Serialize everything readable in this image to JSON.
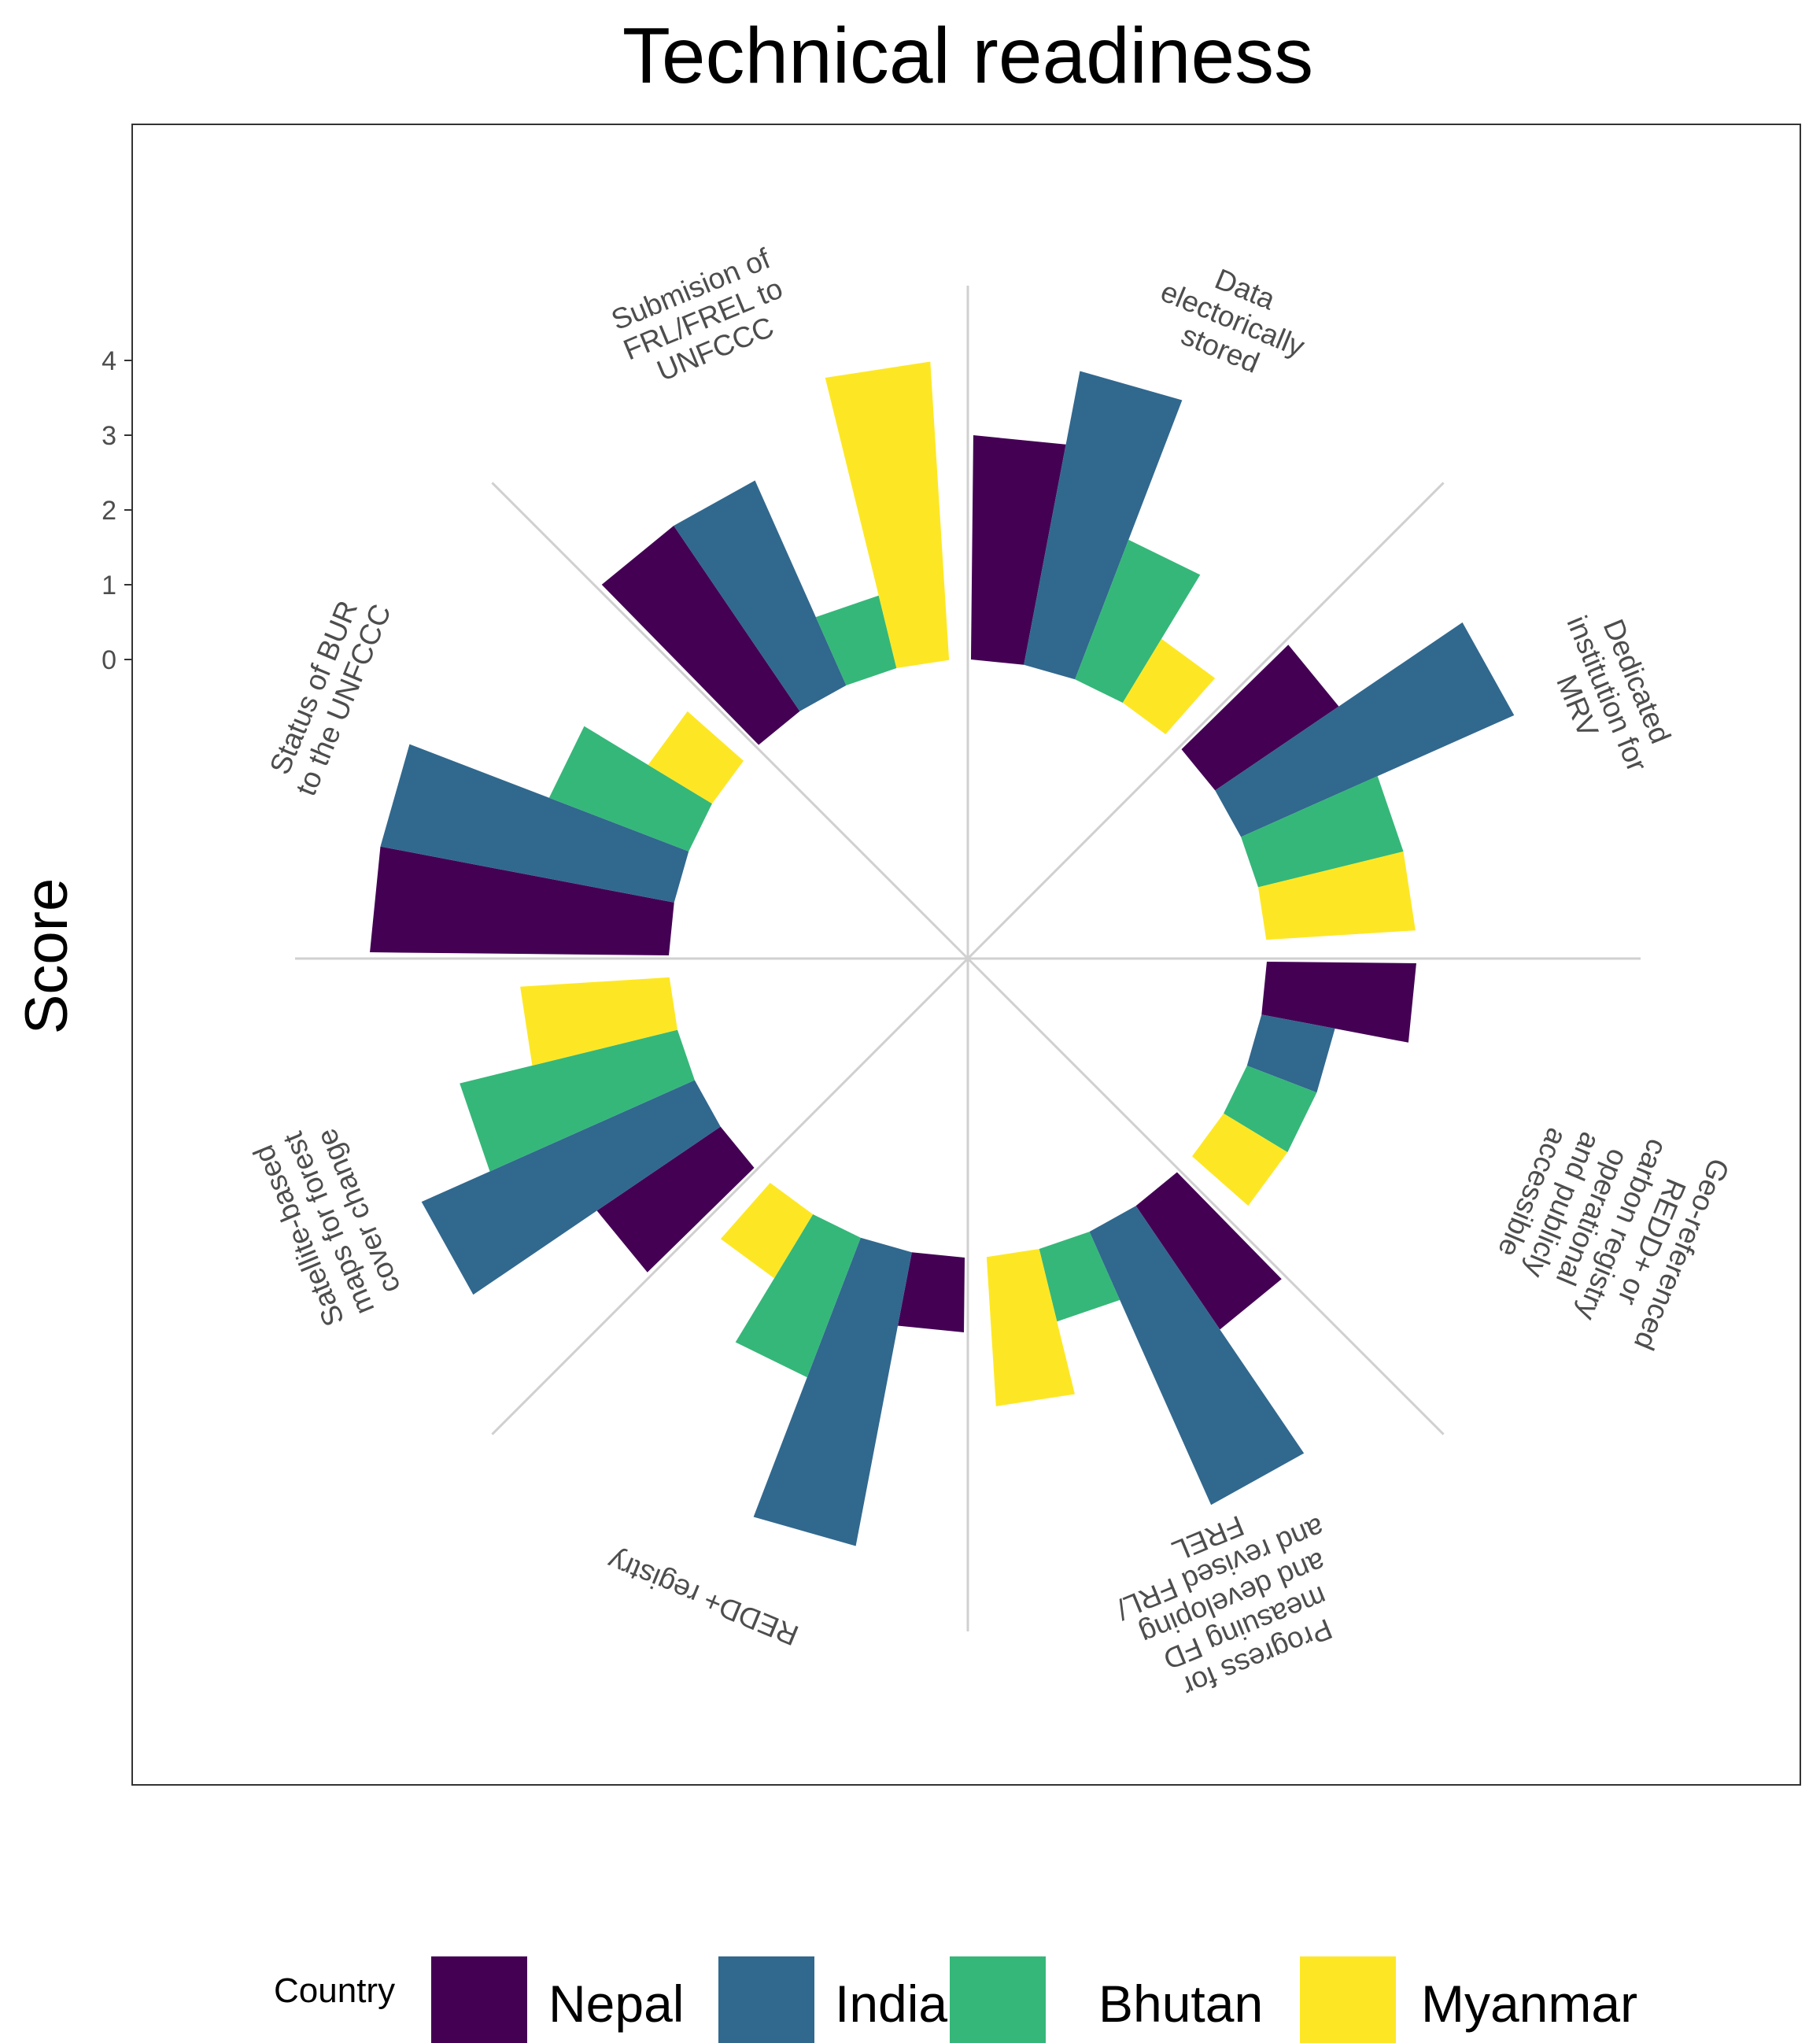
{
  "chart_data": {
    "type": "bar",
    "subtype": "circular-stacked-radial",
    "title": "Technical readiness",
    "ylabel": "Score",
    "xlabel": "",
    "ylim": [
      0,
      4
    ],
    "yticks": [
      "0",
      "1",
      "2",
      "3",
      "4"
    ],
    "categories": [
      "Data electorically stored",
      "Dedicated institution for MRV",
      "Geo-referenced REDD+ or carbon registry operational and publicly accessible",
      "Progress for measuing FD and developing and revised FRL/ FREL",
      "REDD+ registry",
      "Satellite-based maps for forest cover change",
      "Status of BUR to the UNFCCC",
      "Submision of FRL/FREL to UNFCCC"
    ],
    "category_label_lines": [
      [
        "Data",
        "electorically",
        "stored"
      ],
      [
        "Dedicated",
        "institution for",
        "MRV"
      ],
      [
        "Geo-referenced",
        "REDD+ or",
        "carbon registry",
        "operational",
        "and publicly",
        "accessible"
      ],
      [
        "Progress for",
        "measuing FD",
        "and developing",
        "and revised FRL/",
        "FREL"
      ],
      [
        "REDD+ registry"
      ],
      [
        "Satellite-based",
        "maps for forest",
        "cover change"
      ],
      [
        "Status of BUR",
        "to the UNFCCC"
      ],
      [
        "Submision of",
        "FRL/FREL to",
        "UNFCCC"
      ]
    ],
    "series": [
      {
        "name": "Nepal",
        "color": "#440154",
        "values": [
          3,
          2,
          2,
          2,
          1,
          2,
          4,
          3
        ]
      },
      {
        "name": "India",
        "color": "#31688E",
        "values": [
          4,
          4,
          1,
          4,
          4,
          4,
          4,
          3
        ]
      },
      {
        "name": "Bhutan",
        "color": "#35B779",
        "values": [
          2,
          2,
          1,
          1,
          2,
          3,
          2,
          1
        ]
      },
      {
        "name": "Myanmar",
        "color": "#FDE725",
        "values": [
          1,
          2,
          1,
          2,
          1,
          2,
          1,
          4
        ]
      }
    ],
    "legend": {
      "title": "Country",
      "position": "bottom"
    },
    "grid": true
  }
}
